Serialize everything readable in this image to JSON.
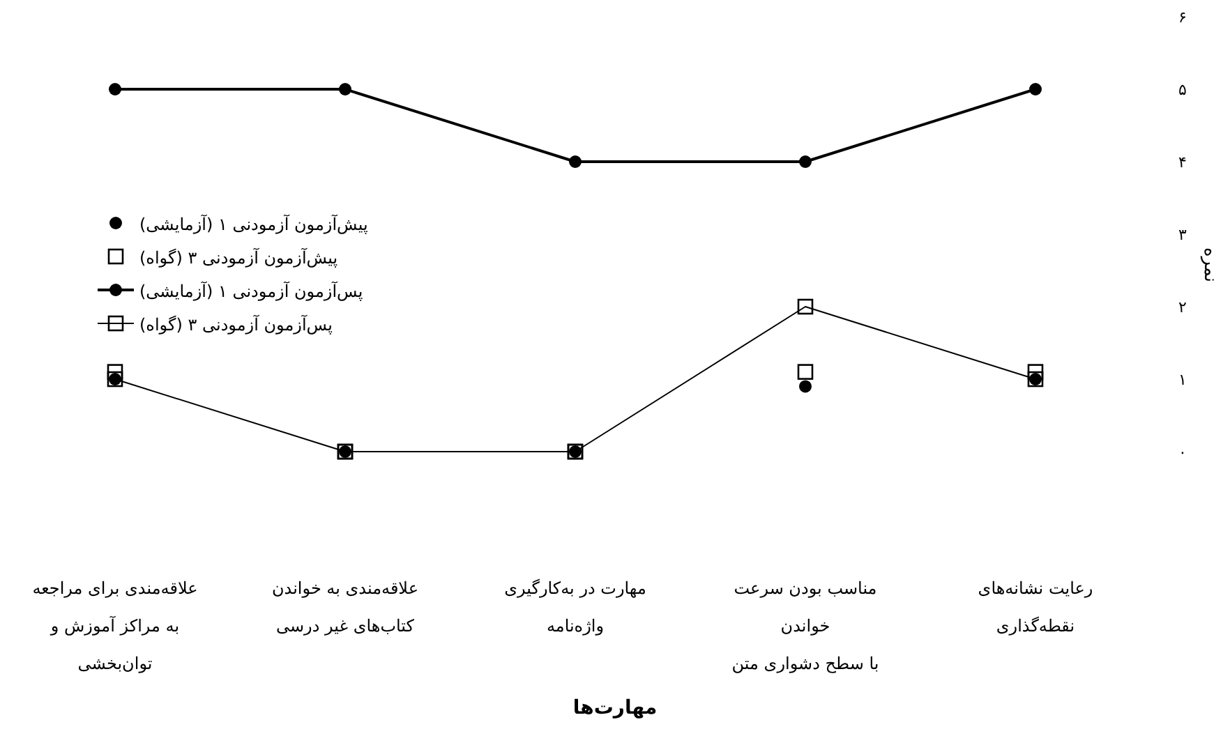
{
  "chart_data": {
    "type": "line",
    "xlabel": "مهارت‌ها",
    "ylabel": "نمره",
    "categories": [
      "علاقه‌مندی برای مراجعه\nبه مراکز آموزش و\nتوان‌بخشی",
      "علاقه‌مندی به خواندن\nکتاب‌های غیر درسی",
      "مهارت در به‌کارگیری\nواژه‌نامه",
      "مناسب بودن سرعت\nخواندن\nبا سطح دشواری متن",
      "رعایت نشانه‌های\nنقطه‌گذاری"
    ],
    "series": [
      {
        "name": "پیش‌آزمون آزمودنی ۱ (آزمایشی)",
        "type": "scatter",
        "marker": "circle",
        "color": "#000000",
        "values": [
          1,
          0,
          0,
          0.9,
          1
        ]
      },
      {
        "name": "پیش‌آزمون آزمودنی ۳ (گواه)",
        "type": "scatter",
        "marker": "square",
        "color": "#000000",
        "values": [
          1.1,
          0,
          0,
          1.1,
          1.1
        ]
      },
      {
        "name": "پس‌آزمون آزمودنی ۱ (آزمایشی)",
        "type": "line",
        "marker": "circle",
        "color": "#000000",
        "values": [
          5,
          5,
          4,
          4,
          5
        ]
      },
      {
        "name": "پس‌آزمون آزمودنی ۳ (گواه)",
        "type": "line",
        "marker": "square",
        "color": "#000000",
        "values": [
          1,
          0,
          0,
          2,
          1
        ]
      }
    ],
    "ylim": [
      0,
      6
    ],
    "yticks": [
      {
        "value": 0,
        "label": "۰"
      },
      {
        "value": 1,
        "label": "۱"
      },
      {
        "value": 2,
        "label": "۲"
      },
      {
        "value": 3,
        "label": "۳"
      },
      {
        "value": 4,
        "label": "۴"
      },
      {
        "value": 5,
        "label": "۵"
      },
      {
        "value": 6,
        "label": "۶"
      }
    ],
    "legend": "left",
    "grid": false
  }
}
